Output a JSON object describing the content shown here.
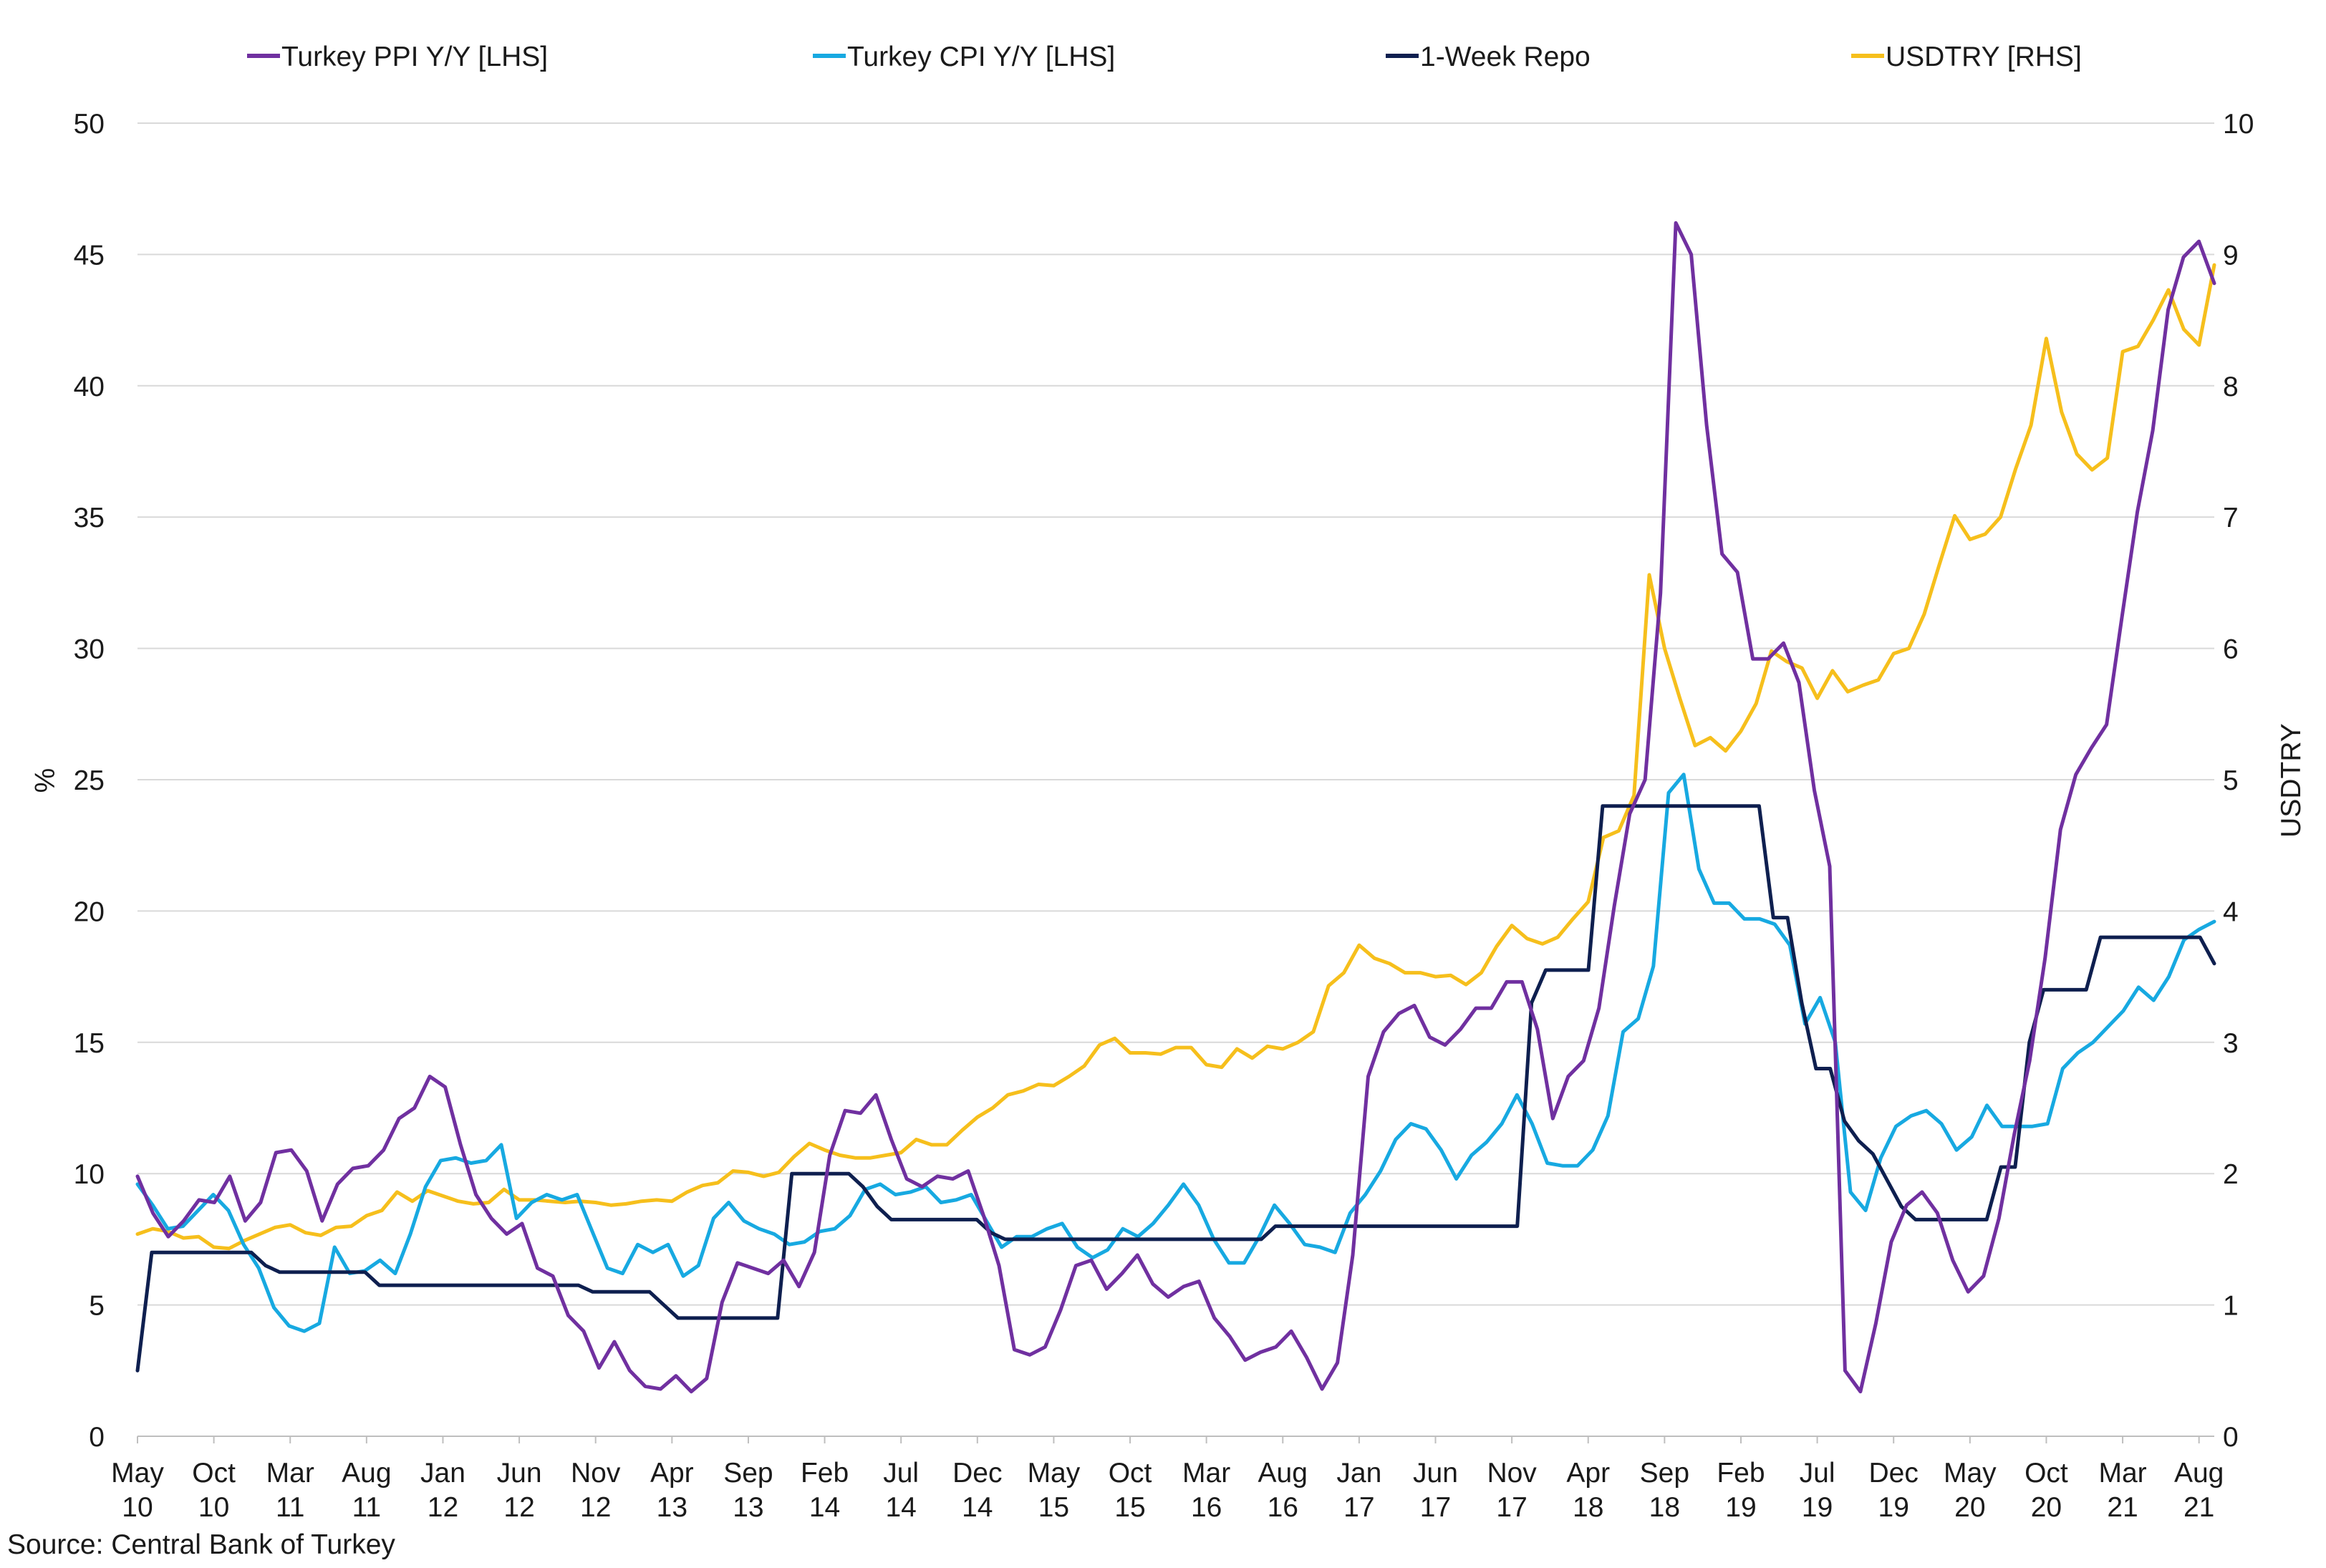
{
  "chart_data": {
    "type": "line",
    "legend_position": "top",
    "grid": true,
    "ylabel_left": "%",
    "ylabel_right": "USDTRY",
    "ylim_left": [
      0,
      50
    ],
    "ylim_right": [
      0,
      10
    ],
    "yticks_left": [
      "0",
      "5",
      "10",
      "15",
      "20",
      "25",
      "30",
      "35",
      "40",
      "45",
      "50"
    ],
    "yticks_right": [
      "0",
      "1",
      "2",
      "3",
      "4",
      "5",
      "6",
      "7",
      "8",
      "9",
      "10"
    ],
    "x_start": "2010-05",
    "x_end": "2021-09",
    "x_tick_labels": [
      {
        "month": "May",
        "year": "10"
      },
      {
        "month": "Oct",
        "year": "10"
      },
      {
        "month": "Mar",
        "year": "11"
      },
      {
        "month": "Aug",
        "year": "11"
      },
      {
        "month": "Jan",
        "year": "12"
      },
      {
        "month": "Jun",
        "year": "12"
      },
      {
        "month": "Nov",
        "year": "12"
      },
      {
        "month": "Apr",
        "year": "13"
      },
      {
        "month": "Sep",
        "year": "13"
      },
      {
        "month": "Feb",
        "year": "14"
      },
      {
        "month": "Jul",
        "year": "14"
      },
      {
        "month": "Dec",
        "year": "14"
      },
      {
        "month": "May",
        "year": "15"
      },
      {
        "month": "Oct",
        "year": "15"
      },
      {
        "month": "Mar",
        "year": "16"
      },
      {
        "month": "Aug",
        "year": "16"
      },
      {
        "month": "Jan",
        "year": "17"
      },
      {
        "month": "Jun",
        "year": "17"
      },
      {
        "month": "Nov",
        "year": "17"
      },
      {
        "month": "Apr",
        "year": "18"
      },
      {
        "month": "Sep",
        "year": "18"
      },
      {
        "month": "Feb",
        "year": "19"
      },
      {
        "month": "Jul",
        "year": "19"
      },
      {
        "month": "Dec",
        "year": "19"
      },
      {
        "month": "May",
        "year": "20"
      },
      {
        "month": "Oct",
        "year": "20"
      },
      {
        "month": "Mar",
        "year": "21"
      },
      {
        "month": "Aug",
        "year": "21"
      }
    ],
    "series": [
      {
        "name": "Turkey PPI Y/Y [LHS]",
        "axis": "left",
        "color": "#7030a0",
        "values": [
          9.9,
          8.5,
          7.6,
          8.2,
          9.0,
          8.9,
          9.9,
          8.2,
          8.9,
          10.8,
          10.9,
          10.1,
          8.2,
          9.6,
          10.2,
          10.3,
          10.9,
          12.1,
          12.5,
          13.7,
          13.3,
          11.1,
          9.2,
          8.3,
          7.7,
          8.1,
          6.4,
          6.1,
          4.6,
          4.0,
          2.6,
          3.6,
          2.5,
          1.9,
          1.8,
          2.3,
          1.7,
          2.2,
          5.1,
          6.6,
          6.4,
          6.2,
          6.7,
          5.7,
          7.0,
          10.7,
          12.4,
          12.3,
          13.0,
          11.3,
          9.8,
          9.5,
          9.9,
          9.8,
          10.1,
          8.4,
          6.5,
          3.3,
          3.1,
          3.4,
          4.8,
          6.5,
          6.7,
          5.6,
          6.2,
          6.9,
          5.8,
          5.3,
          5.7,
          5.9,
          4.5,
          3.8,
          2.9,
          3.2,
          3.4,
          4.0,
          3.0,
          1.8,
          2.8,
          6.9,
          13.7,
          15.4,
          16.1,
          16.4,
          15.2,
          14.9,
          15.5,
          16.3,
          16.3,
          17.3,
          17.3,
          15.5,
          12.1,
          13.7,
          14.3,
          16.3,
          20.2,
          23.7,
          25.0,
          32.1,
          46.2,
          45.0,
          38.5,
          33.6,
          32.9,
          29.6,
          29.6,
          30.2,
          28.7,
          24.6,
          21.7,
          2.5,
          1.7,
          4.3,
          7.4,
          8.8,
          9.3,
          8.5,
          6.7,
          5.5,
          6.1,
          8.3,
          11.5,
          14.3,
          18.2,
          23.1,
          25.2,
          26.2,
          27.1,
          31.2,
          35.2,
          38.3,
          42.9,
          44.9,
          45.5,
          43.9
        ]
      },
      {
        "name": "Turkey CPI Y/Y [LHS]",
        "axis": "left",
        "color": "#17a9e1",
        "values": [
          9.6,
          8.8,
          7.9,
          8.0,
          8.6,
          9.2,
          8.6,
          7.3,
          6.4,
          4.9,
          4.2,
          4.0,
          4.3,
          7.2,
          6.2,
          6.3,
          6.7,
          6.2,
          7.7,
          9.5,
          10.5,
          10.6,
          10.4,
          10.5,
          11.1,
          8.3,
          8.9,
          9.2,
          9.0,
          9.2,
          7.8,
          6.4,
          6.2,
          7.3,
          7.0,
          7.3,
          6.1,
          6.5,
          8.3,
          8.9,
          8.2,
          7.9,
          7.7,
          7.3,
          7.4,
          7.8,
          7.9,
          8.4,
          9.4,
          9.6,
          9.2,
          9.3,
          9.5,
          8.9,
          9.0,
          9.2,
          8.2,
          7.2,
          7.6,
          7.6,
          7.9,
          8.1,
          7.2,
          6.8,
          7.1,
          7.9,
          7.6,
          8.1,
          8.8,
          9.6,
          8.8,
          7.5,
          6.6,
          6.6,
          7.6,
          8.8,
          8.1,
          7.3,
          7.2,
          7.0,
          8.5,
          9.2,
          10.1,
          11.3,
          11.9,
          11.7,
          10.9,
          9.8,
          10.7,
          11.2,
          11.9,
          13.0,
          11.9,
          10.4,
          10.3,
          10.3,
          10.9,
          12.2,
          15.4,
          15.9,
          17.9,
          24.5,
          25.2,
          21.6,
          20.3,
          20.3,
          19.7,
          19.7,
          19.5,
          18.7,
          15.7,
          16.7,
          15.0,
          9.3,
          8.6,
          10.6,
          11.8,
          12.2,
          12.4,
          11.9,
          10.9,
          11.4,
          12.6,
          11.8,
          11.8,
          11.8,
          11.9,
          14.0,
          14.6,
          15.0,
          15.6,
          16.2,
          17.1,
          16.6,
          17.5,
          18.9,
          19.3,
          19.6
        ]
      },
      {
        "name": "1-Week Repo",
        "axis": "left",
        "color": "#0e1f4f",
        "values": [
          2.5,
          7.0,
          7.0,
          7.0,
          7.0,
          7.0,
          7.0,
          7.0,
          7.0,
          6.5,
          6.25,
          6.25,
          6.25,
          6.25,
          6.25,
          6.25,
          6.25,
          5.75,
          5.75,
          5.75,
          5.75,
          5.75,
          5.75,
          5.75,
          5.75,
          5.75,
          5.75,
          5.75,
          5.75,
          5.75,
          5.75,
          5.75,
          5.5,
          5.5,
          5.5,
          5.5,
          5.5,
          5.0,
          4.5,
          4.5,
          4.5,
          4.5,
          4.5,
          4.5,
          4.5,
          4.5,
          10.0,
          10.0,
          10.0,
          10.0,
          10.0,
          9.5,
          8.75,
          8.25,
          8.25,
          8.25,
          8.25,
          8.25,
          8.25,
          8.25,
          7.75,
          7.5,
          7.5,
          7.5,
          7.5,
          7.5,
          7.5,
          7.5,
          7.5,
          7.5,
          7.5,
          7.5,
          7.5,
          7.5,
          7.5,
          7.5,
          7.5,
          7.5,
          7.5,
          7.5,
          8.0,
          8.0,
          8.0,
          8.0,
          8.0,
          8.0,
          8.0,
          8.0,
          8.0,
          8.0,
          8.0,
          8.0,
          8.0,
          8.0,
          8.0,
          8.0,
          8.0,
          8.0,
          16.5,
          17.75,
          17.75,
          17.75,
          17.75,
          24.0,
          24.0,
          24.0,
          24.0,
          24.0,
          24.0,
          24.0,
          24.0,
          24.0,
          24.0,
          24.0,
          24.0,
          19.75,
          19.75,
          16.5,
          14.0,
          14.0,
          12.0,
          11.25,
          10.75,
          9.75,
          8.75,
          8.25,
          8.25,
          8.25,
          8.25,
          8.25,
          8.25,
          10.25,
          10.25,
          15.0,
          17.0,
          17.0,
          17.0,
          17.0,
          19.0,
          19.0,
          19.0,
          19.0,
          19.0,
          19.0,
          19.0,
          19.0,
          18.0
        ]
      },
      {
        "name": "USDTRY [RHS]",
        "axis": "right",
        "color": "#f6bf1c",
        "values": [
          1.54,
          1.58,
          1.56,
          1.51,
          1.52,
          1.44,
          1.43,
          1.49,
          1.54,
          1.59,
          1.61,
          1.55,
          1.53,
          1.59,
          1.6,
          1.68,
          1.72,
          1.86,
          1.79,
          1.87,
          1.83,
          1.79,
          1.77,
          1.78,
          1.88,
          1.8,
          1.8,
          1.79,
          1.78,
          1.79,
          1.78,
          1.76,
          1.77,
          1.79,
          1.8,
          1.79,
          1.86,
          1.91,
          1.93,
          2.02,
          2.01,
          1.98,
          2.01,
          2.13,
          2.23,
          2.18,
          2.14,
          2.12,
          2.12,
          2.14,
          2.16,
          2.26,
          2.22,
          2.22,
          2.33,
          2.43,
          2.5,
          2.6,
          2.63,
          2.68,
          2.67,
          2.74,
          2.82,
          2.98,
          3.03,
          2.92,
          2.92,
          2.91,
          2.96,
          2.96,
          2.83,
          2.81,
          2.95,
          2.88,
          2.97,
          2.95,
          3.0,
          3.08,
          3.43,
          3.53,
          3.74,
          3.64,
          3.6,
          3.53,
          3.53,
          3.5,
          3.51,
          3.44,
          3.53,
          3.73,
          3.89,
          3.79,
          3.75,
          3.8,
          3.94,
          4.07,
          4.56,
          4.61,
          4.88,
          6.56,
          6.0,
          5.62,
          5.26,
          5.32,
          5.22,
          5.37,
          5.58,
          5.98,
          5.9,
          5.85,
          5.62,
          5.83,
          5.67,
          5.72,
          5.76,
          5.96,
          6.0,
          6.26,
          6.64,
          7.01,
          6.83,
          6.87,
          7.0,
          7.37,
          7.7,
          8.36,
          7.8,
          7.48,
          7.36,
          7.45,
          8.26,
          8.3,
          8.5,
          8.73,
          8.43,
          8.31,
          8.92
        ]
      }
    ],
    "annotations": {
      "source": "Source: Central Bank of Turkey"
    }
  }
}
